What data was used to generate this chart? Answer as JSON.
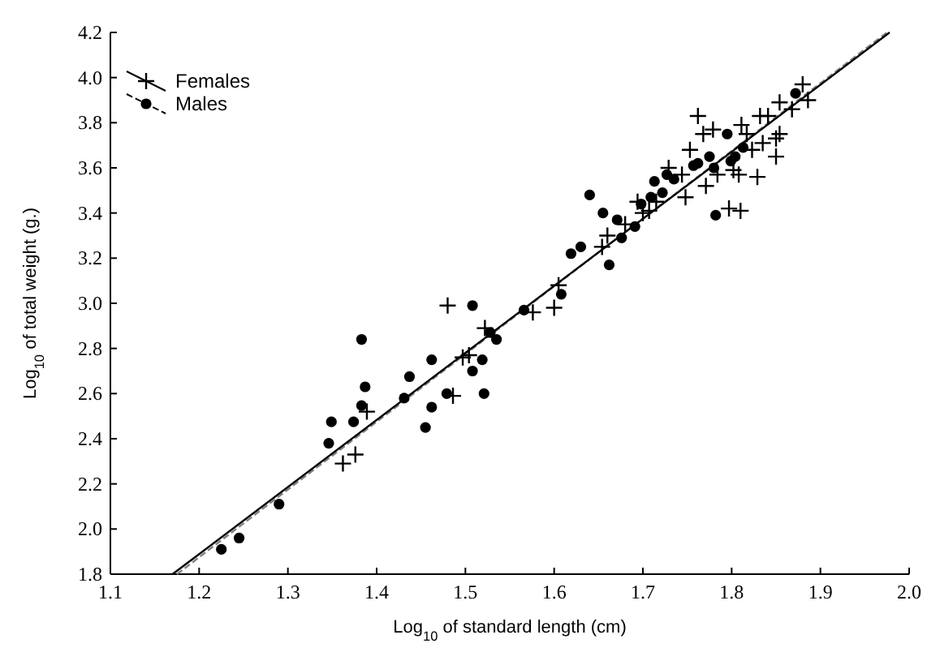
{
  "chart_data": {
    "type": "scatter",
    "xlabel": "Log$_{10}$ of standard length (cm)",
    "ylabel": "Log$_{10}$ of total weight (g.)",
    "xlim": [
      1.1,
      2.0
    ],
    "ylim": [
      1.8,
      4.2
    ],
    "xticks": [
      {
        "value": 1.1,
        "label": "1.1"
      },
      {
        "value": 1.2,
        "label": "1.2"
      },
      {
        "value": 1.3,
        "label": "1.3"
      },
      {
        "value": 1.4,
        "label": "1.4"
      },
      {
        "value": 1.5,
        "label": "1.5"
      },
      {
        "value": 1.6,
        "label": "1.6"
      },
      {
        "value": 1.7,
        "label": "1.7"
      },
      {
        "value": 1.8,
        "label": "1.8"
      },
      {
        "value": 1.9,
        "label": "1.9"
      },
      {
        "value": 2.0,
        "label": "2.0"
      }
    ],
    "yticks": [
      {
        "value": 1.8,
        "label": "1.8"
      },
      {
        "value": 2.0,
        "label": "2.0"
      },
      {
        "value": 2.2,
        "label": "2.2"
      },
      {
        "value": 2.4,
        "label": "2.4"
      },
      {
        "value": 2.6,
        "label": "2.6"
      },
      {
        "value": 2.8,
        "label": "2.8"
      },
      {
        "value": 3.0,
        "label": "3.0"
      },
      {
        "value": 3.2,
        "label": "3.2"
      },
      {
        "value": 3.4,
        "label": "3.4"
      },
      {
        "value": 3.6,
        "label": "3.6"
      },
      {
        "value": 3.8,
        "label": "3.8"
      },
      {
        "value": 4.0,
        "label": "4.0"
      },
      {
        "value": 4.2,
        "label": "4.2"
      }
    ],
    "grid": false,
    "legend": "top left",
    "series": [
      {
        "name": "Females",
        "marker": "cross",
        "color": "#000000",
        "line_style": "solid",
        "x": [
          1.48,
          1.389,
          1.362,
          1.376,
          1.486,
          1.497,
          1.504,
          1.522,
          1.576,
          1.6,
          1.605,
          1.654,
          1.762,
          1.768,
          1.753,
          1.729,
          1.744,
          1.748,
          1.771,
          1.779,
          1.802,
          1.811,
          1.829,
          1.797,
          1.81,
          1.832,
          1.841,
          1.854,
          1.854,
          1.85,
          1.85,
          1.817,
          1.823,
          1.835,
          1.868,
          1.886,
          1.88,
          1.694,
          1.707,
          1.808,
          1.784,
          1.66,
          1.68,
          1.7,
          1.715
        ],
        "values": [
          2.99,
          2.52,
          2.29,
          2.33,
          2.59,
          2.76,
          2.77,
          2.89,
          2.96,
          2.98,
          3.08,
          3.25,
          3.83,
          3.75,
          3.68,
          3.6,
          3.57,
          3.47,
          3.52,
          3.77,
          3.59,
          3.79,
          3.56,
          3.42,
          3.41,
          3.83,
          3.83,
          3.89,
          3.75,
          3.65,
          3.73,
          3.75,
          3.68,
          3.71,
          3.86,
          3.9,
          3.97,
          3.45,
          3.41,
          3.57,
          3.57,
          3.3,
          3.35,
          3.4,
          3.45
        ]
      },
      {
        "name": "Males",
        "marker": "circle",
        "color": "#000000",
        "line_style": "dashed",
        "x": [
          1.225,
          1.245,
          1.29,
          1.349,
          1.346,
          1.374,
          1.383,
          1.383,
          1.387,
          1.431,
          1.437,
          1.455,
          1.462,
          1.462,
          1.479,
          1.508,
          1.519,
          1.508,
          1.521,
          1.528,
          1.535,
          1.566,
          1.608,
          1.619,
          1.63,
          1.662,
          1.64,
          1.655,
          1.671,
          1.676,
          1.691,
          1.698,
          1.709,
          1.713,
          1.722,
          1.727,
          1.735,
          1.757,
          1.762,
          1.775,
          1.78,
          1.795,
          1.799,
          1.804,
          1.813,
          1.782,
          1.872
        ],
        "values": [
          1.91,
          1.96,
          2.11,
          2.475,
          2.38,
          2.475,
          2.547,
          2.84,
          2.63,
          2.58,
          2.675,
          2.45,
          2.54,
          2.75,
          2.6,
          2.99,
          2.75,
          2.7,
          2.6,
          2.87,
          2.84,
          2.97,
          3.04,
          3.22,
          3.25,
          3.17,
          3.48,
          3.4,
          3.37,
          3.29,
          3.34,
          3.44,
          3.47,
          3.54,
          3.49,
          3.57,
          3.55,
          3.61,
          3.62,
          3.65,
          3.6,
          3.75,
          3.63,
          3.65,
          3.69,
          3.39,
          3.93
        ]
      },
      {
        "type": "line",
        "color": "#000000",
        "line_style": "solid",
        "x": [
          1.17,
          1.978
        ],
        "values": [
          1.8,
          4.2
        ]
      },
      {
        "type": "line",
        "color": "#808080",
        "line_style": "dashed",
        "x": [
          1.175,
          1.975
        ],
        "values": [
          1.8,
          4.2
        ]
      }
    ]
  }
}
